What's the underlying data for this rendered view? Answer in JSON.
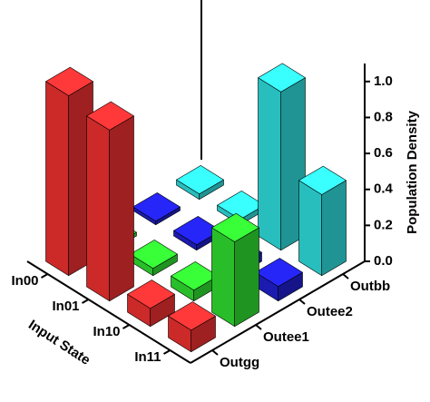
{
  "chart_data": {
    "type": "bar3d",
    "xlabel": "Input State",
    "ylabel": "Population Density",
    "categories": [
      "In00",
      "In01",
      "In10",
      "In11"
    ],
    "series": [
      {
        "name": "Outgg",
        "color": "#ff3333",
        "values": [
          1.0,
          0.95,
          0.1,
          0.12
        ]
      },
      {
        "name": "Outee1",
        "color": "#33ee33",
        "values": [
          0.02,
          0.04,
          0.06,
          0.47
        ]
      },
      {
        "name": "Outee2",
        "color": "#2222dd",
        "values": [
          0.02,
          0.03,
          0.05,
          0.08
        ]
      },
      {
        "name": "Outbb",
        "color": "#33eeee",
        "values": [
          0.03,
          0.03,
          0.88,
          0.45
        ]
      }
    ],
    "ylim": [
      0,
      1.1
    ],
    "yticks": [
      {
        "value": 0,
        "label": "0.0"
      },
      {
        "value": 0.2,
        "label": "0.2"
      },
      {
        "value": 0.4,
        "label": "0.4"
      },
      {
        "value": 0.6,
        "label": "0.6"
      },
      {
        "value": 0.8,
        "label": "0.8"
      },
      {
        "value": 1.0,
        "label": "1.0"
      }
    ]
  }
}
